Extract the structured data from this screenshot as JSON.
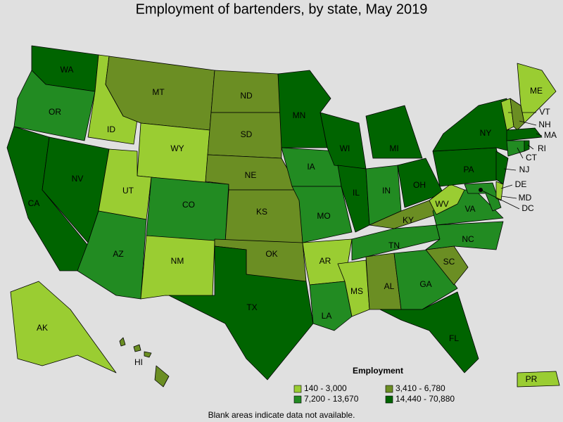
{
  "title": "Employment of bartenders, by state, May 2019",
  "legend": {
    "title": "Employment",
    "items": [
      {
        "label": "140 - 3,000",
        "color": "#9acd32"
      },
      {
        "label": "3,410 - 6,780",
        "color": "#6b8e23"
      },
      {
        "label": "7,200 - 13,670",
        "color": "#228b22"
      },
      {
        "label": "14,440 - 70,880",
        "color": "#006400"
      }
    ]
  },
  "states": [
    {
      "abbr": "WA",
      "color": "#006400"
    },
    {
      "abbr": "OR",
      "color": "#228b22"
    },
    {
      "abbr": "CA",
      "color": "#006400"
    },
    {
      "abbr": "NV",
      "color": "#006400"
    },
    {
      "abbr": "ID",
      "color": "#9acd32"
    },
    {
      "abbr": "MT",
      "color": "#6b8e23"
    },
    {
      "abbr": "WY",
      "color": "#9acd32"
    },
    {
      "abbr": "UT",
      "color": "#9acd32"
    },
    {
      "abbr": "AZ",
      "color": "#228b22"
    },
    {
      "abbr": "CO",
      "color": "#228b22"
    },
    {
      "abbr": "NM",
      "color": "#9acd32"
    },
    {
      "abbr": "ND",
      "color": "#6b8e23"
    },
    {
      "abbr": "SD",
      "color": "#6b8e23"
    },
    {
      "abbr": "NE",
      "color": "#6b8e23"
    },
    {
      "abbr": "KS",
      "color": "#6b8e23"
    },
    {
      "abbr": "OK",
      "color": "#6b8e23"
    },
    {
      "abbr": "TX",
      "color": "#006400"
    },
    {
      "abbr": "MN",
      "color": "#006400"
    },
    {
      "abbr": "IA",
      "color": "#228b22"
    },
    {
      "abbr": "MO",
      "color": "#228b22"
    },
    {
      "abbr": "AR",
      "color": "#9acd32"
    },
    {
      "abbr": "LA",
      "color": "#228b22"
    },
    {
      "abbr": "WI",
      "color": "#006400"
    },
    {
      "abbr": "IL",
      "color": "#006400"
    },
    {
      "abbr": "MI",
      "color": "#006400"
    },
    {
      "abbr": "IN",
      "color": "#228b22"
    },
    {
      "abbr": "OH",
      "color": "#006400"
    },
    {
      "abbr": "KY",
      "color": "#6b8e23"
    },
    {
      "abbr": "TN",
      "color": "#228b22"
    },
    {
      "abbr": "MS",
      "color": "#9acd32"
    },
    {
      "abbr": "AL",
      "color": "#6b8e23"
    },
    {
      "abbr": "GA",
      "color": "#228b22"
    },
    {
      "abbr": "FL",
      "color": "#006400"
    },
    {
      "abbr": "SC",
      "color": "#6b8e23"
    },
    {
      "abbr": "NC",
      "color": "#228b22"
    },
    {
      "abbr": "VA",
      "color": "#228b22"
    },
    {
      "abbr": "WV",
      "color": "#9acd32"
    },
    {
      "abbr": "PA",
      "color": "#006400"
    },
    {
      "abbr": "NY",
      "color": "#006400"
    },
    {
      "abbr": "NJ",
      "color": "#006400"
    },
    {
      "abbr": "MD",
      "color": "#228b22"
    },
    {
      "abbr": "DE",
      "color": "#9acd32"
    },
    {
      "abbr": "ME",
      "color": "#9acd32"
    },
    {
      "abbr": "VT",
      "color": "#9acd32"
    },
    {
      "abbr": "NH",
      "color": "#6b8e23"
    },
    {
      "abbr": "MA",
      "color": "#006400"
    },
    {
      "abbr": "CT",
      "color": "#228b22"
    },
    {
      "abbr": "RI",
      "color": "#006400"
    },
    {
      "abbr": "AK",
      "color": "#9acd32"
    },
    {
      "abbr": "HI",
      "color": "#6b8e23"
    },
    {
      "abbr": "PR",
      "color": "#9acd32"
    },
    {
      "abbr": "DC",
      "color": "#006400"
    }
  ],
  "footnote": "Blank areas indicate data not available."
}
